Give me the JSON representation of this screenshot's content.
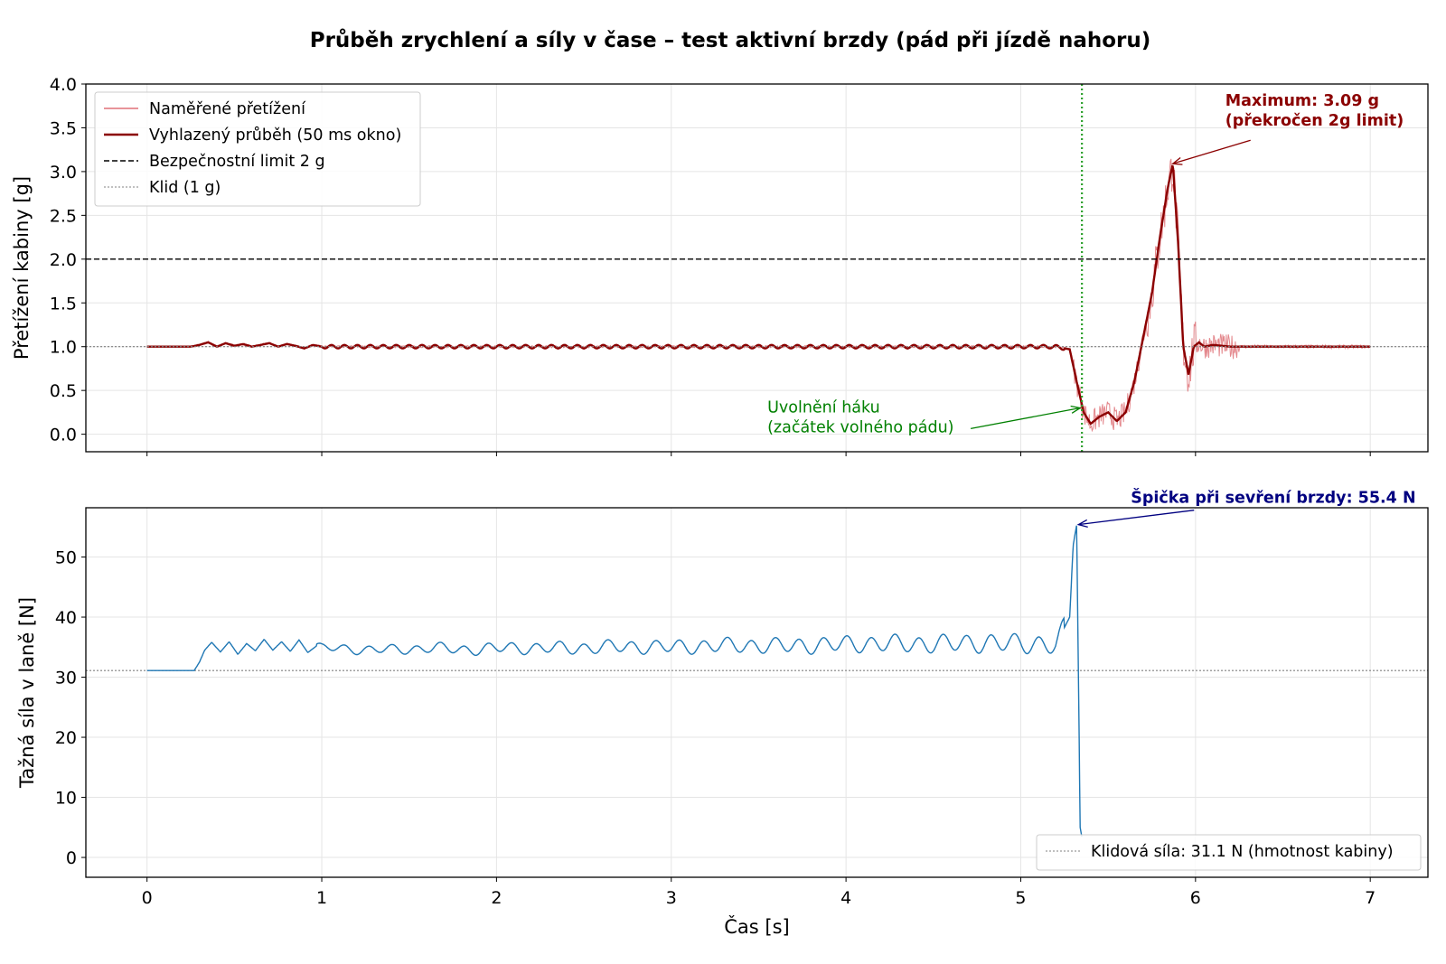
{
  "title": "Průběh zrychlení a síly v čase – test aktivní brzdy (pád při jízdě nahoru)",
  "colors": {
    "raw": "#d9555c",
    "smooth": "#8b0000",
    "force": "#1f77b4",
    "limit": "#000000",
    "rest": "#808080",
    "release": "#2ca02c",
    "ann_max": "#8b0000",
    "ann_release": "#008000",
    "ann_peak": "#000080",
    "grid": "#e5e5e5"
  },
  "chart_data": [
    {
      "type": "line",
      "ylabel": "Přetížení kabiny [g]",
      "xlim": [
        -0.35,
        7.33
      ],
      "ylim": [
        -0.2,
        4.0
      ],
      "xticks": [
        0,
        1,
        2,
        3,
        4,
        5,
        6,
        7
      ],
      "yticks": [
        0.0,
        0.5,
        1.0,
        1.5,
        2.0,
        2.5,
        3.0,
        3.5,
        4.0
      ],
      "ytick_labels": [
        "0.0",
        "0.5",
        "1.0",
        "1.5",
        "2.0",
        "2.5",
        "3.0",
        "3.5",
        "4.0"
      ],
      "grid": true,
      "legend_position": "upper-left",
      "legend": [
        {
          "label": "Naměřené přetížení",
          "style": "raw"
        },
        {
          "label": "Vyhlazený průběh (50 ms okno)",
          "style": "smooth"
        },
        {
          "label": "Bezpečnostní limit 2 g",
          "style": "limit"
        },
        {
          "label": "Klid (1 g)",
          "style": "rest"
        }
      ],
      "series": [
        {
          "name": "Vyhlazený průběh (50 ms okno)",
          "x": [
            0,
            0.25,
            0.3,
            0.35,
            0.4,
            0.45,
            0.5,
            0.55,
            0.6,
            0.65,
            0.7,
            0.75,
            0.8,
            0.85,
            0.9,
            0.95,
            1.0,
            1.2,
            1.4,
            1.6,
            1.8,
            2.0,
            2.2,
            2.4,
            2.6,
            2.8,
            3.0,
            3.2,
            3.4,
            3.6,
            3.8,
            4.0,
            4.2,
            4.4,
            4.6,
            4.8,
            5.0,
            5.2,
            5.28,
            5.32,
            5.36,
            5.4,
            5.45,
            5.5,
            5.55,
            5.6,
            5.65,
            5.7,
            5.75,
            5.8,
            5.84,
            5.87,
            5.9,
            5.93,
            5.96,
            5.99,
            6.02,
            6.05,
            6.1,
            6.2,
            7.0
          ],
          "y": [
            1.0,
            1.0,
            1.02,
            1.05,
            1.0,
            1.04,
            1.01,
            1.03,
            1.0,
            1.02,
            1.04,
            1.0,
            1.03,
            1.01,
            0.98,
            1.02,
            1.0,
            1.0,
            1.0,
            1.0,
            1.0,
            1.0,
            1.0,
            1.0,
            1.0,
            1.0,
            1.0,
            1.0,
            1.0,
            1.0,
            1.0,
            1.0,
            1.0,
            1.0,
            1.0,
            1.0,
            1.0,
            1.0,
            0.97,
            0.6,
            0.25,
            0.12,
            0.2,
            0.25,
            0.15,
            0.25,
            0.6,
            1.1,
            1.6,
            2.3,
            2.8,
            3.09,
            2.2,
            1.0,
            0.68,
            1.0,
            1.05,
            1.0,
            1.02,
            1.0,
            1.0
          ]
        },
        {
          "name": "Bezpečnostní limit 2 g",
          "y": 2.0
        },
        {
          "name": "Klid (1 g)",
          "y": 1.0
        }
      ],
      "vline": {
        "x": 5.35
      },
      "annotations": [
        {
          "text": [
            "Maximum: 3.09 g",
            "(překročen 2g limit)"
          ],
          "point": [
            5.87,
            3.09
          ],
          "text_at": [
            6.17,
            3.75
          ]
        },
        {
          "text": [
            "Uvolnění háku",
            "(začátek volného pádu)"
          ],
          "point": [
            5.34,
            0.3
          ],
          "text_at": [
            3.55,
            0.25
          ]
        }
      ]
    },
    {
      "type": "line",
      "xlabel": "Čas [s]",
      "ylabel": "Tažná síla v laně [N]",
      "xlim": [
        -0.35,
        7.33
      ],
      "ylim": [
        -3.3,
        58.2
      ],
      "xticks": [
        0,
        1,
        2,
        3,
        4,
        5,
        6,
        7
      ],
      "yticks": [
        0,
        10,
        20,
        30,
        40,
        50
      ],
      "grid": true,
      "legend_position": "lower-right",
      "legend": [
        {
          "label": "Klidová síla: 31.1 N (hmotnost kabiny)",
          "style": "rest"
        }
      ],
      "series": [
        {
          "name": "Tažná síla",
          "x": [
            0,
            0.27,
            0.3,
            0.33,
            0.37,
            0.42,
            0.47,
            0.52,
            0.57,
            0.62,
            0.67,
            0.72,
            0.77,
            0.82,
            0.87,
            0.92,
            0.97,
            1.0,
            1.2,
            1.4,
            1.6,
            1.8,
            2.0,
            2.2,
            2.4,
            2.6,
            2.8,
            3.0,
            3.2,
            3.4,
            3.6,
            3.8,
            4.0,
            4.2,
            4.4,
            4.6,
            4.8,
            5.0,
            5.2,
            5.28,
            5.3,
            5.32,
            5.33,
            5.34,
            5.35
          ],
          "y": [
            31.1,
            31.1,
            32.5,
            34.5,
            35.8,
            34.2,
            35.9,
            33.8,
            35.6,
            34.4,
            36.3,
            34.5,
            35.9,
            34.3,
            36.2,
            34.1,
            35.2,
            34.8,
            34.7,
            34.5,
            34.9,
            34.6,
            34.8,
            34.9,
            34.8,
            35.0,
            35.1,
            35.0,
            35.2,
            35.3,
            35.2,
            35.3,
            35.5,
            35.6,
            35.5,
            35.6,
            35.7,
            35.6,
            35.4,
            40,
            52,
            55.4,
            30,
            5,
            3.3
          ]
        }
      ],
      "hline": {
        "y": 31.1
      },
      "annotations": [
        {
          "text": [
            "Špička při sevření brzdy: 55.4 N"
          ],
          "point": [
            5.33,
            55.4
          ],
          "text_at": [
            5.63,
            59.0
          ]
        }
      ]
    }
  ]
}
